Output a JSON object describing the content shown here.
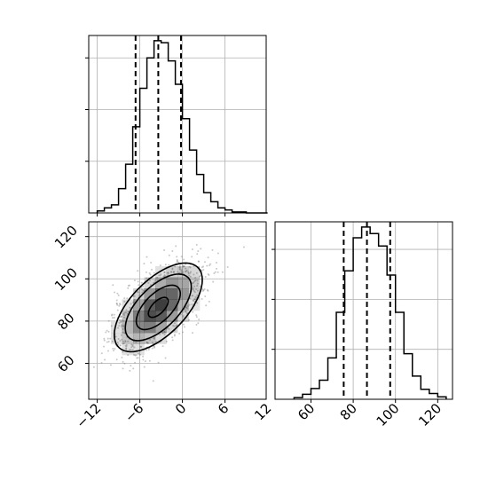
{
  "chart_data": [
    {
      "type": "histogram",
      "panel": "top-left marginal",
      "variable_index": 0,
      "bin_edges": [
        -12,
        -11,
        -10,
        -9,
        -8,
        -7,
        -6,
        -5,
        -4,
        -3,
        -2,
        -1,
        0,
        1,
        2,
        3,
        4,
        5,
        6,
        7,
        8,
        9,
        10,
        11,
        12
      ],
      "counts": [
        2,
        5,
        8,
        24,
        48,
        85,
        123,
        153,
        170,
        168,
        150,
        127,
        93,
        62,
        38,
        20,
        11,
        5,
        3,
        1,
        1,
        0,
        0,
        0
      ],
      "quantile_lines": [
        -6.6,
        -3.4,
        -0.2
      ],
      "xlim": [
        -13.2,
        11.8
      ],
      "grid": true,
      "colors": {
        "line": "#000000",
        "grid": "#b0b0b0"
      }
    },
    {
      "type": "heatmap",
      "panel": "bottom-left 2d density",
      "x_variable_index": 0,
      "y_variable_index": 1,
      "xlim": [
        -13.2,
        11.8
      ],
      "ylim": [
        43,
        127
      ],
      "x_ticks": [
        "−12",
        "−6",
        "0",
        "6",
        "12"
      ],
      "x_tick_values": [
        -12,
        -6,
        0,
        6,
        12
      ],
      "y_ticks": [
        "60",
        "80",
        "100",
        "120"
      ],
      "y_tick_values": [
        60,
        80,
        100,
        120
      ],
      "mean": [
        -3.4,
        86.5
      ],
      "std": [
        3.1,
        10.5
      ],
      "correlation": 0.62,
      "contour_levels": [
        "outer",
        "mid",
        "inner",
        "core"
      ],
      "grid": true,
      "colors": {
        "points": "#888888",
        "contours": "#000000",
        "density": "#1a1a1a"
      }
    },
    {
      "type": "histogram",
      "panel": "bottom-right marginal",
      "variable_index": 1,
      "bin_edges": [
        52,
        56,
        60,
        64,
        68,
        72,
        76,
        80,
        84,
        88,
        92,
        96,
        100,
        104,
        108,
        112,
        116,
        120,
        124
      ],
      "counts": [
        2,
        6,
        13,
        23,
        50,
        105,
        155,
        195,
        208,
        200,
        185,
        150,
        105,
        55,
        28,
        12,
        7,
        3
      ],
      "quantile_lines": [
        75.5,
        86.5,
        97.5
      ],
      "xlim": [
        43,
        127
      ],
      "x_ticks": [
        "60",
        "80",
        "100",
        "120"
      ],
      "x_tick_values": [
        60,
        80,
        100,
        120
      ],
      "grid": true,
      "colors": {
        "line": "#000000",
        "grid": "#b0b0b0"
      }
    }
  ]
}
